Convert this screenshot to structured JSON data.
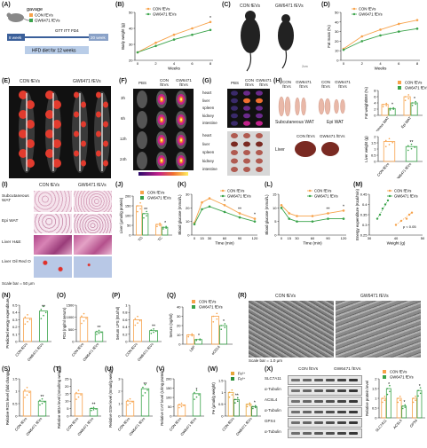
{
  "colors": {
    "con": "#f7a24a",
    "gw": "#3aa34a",
    "fat": "#e23b2e",
    "mouse": "#222222"
  },
  "letters": [
    "(A)",
    "(B)",
    "(C)",
    "(D)",
    "(E)",
    "(F)",
    "(G)",
    "(H)",
    "(I)",
    "(J)",
    "(K)",
    "(L)",
    "(M)",
    "(N)",
    "(O)",
    "(P)",
    "(Q)",
    "(R)",
    "(S)",
    "(T)",
    "(U)",
    "(V)",
    "(W)",
    "(X)"
  ],
  "groups": {
    "con": "CON fEVs",
    "gw": "GW6471 fEVs"
  },
  "A": {
    "gavage": "gavage",
    "legend": [
      "CON fEVs",
      "GW6471 fEVs"
    ],
    "start": "8 week",
    "end": "20 week",
    "diet": "HFD diet for 12 weeks",
    "tests": "GTT ITT FD4"
  },
  "B": {
    "ylabel": "Body weight (g)",
    "xlabel": "Weeks",
    "legend": [
      "CON fEVs",
      "GW6471 fEVs"
    ],
    "star": "*"
  },
  "C": {
    "labels": [
      "CON fEVs",
      "GW6471 fEVs"
    ],
    "scale": "2cm"
  },
  "D": {
    "ylabel": "Fat mass (%)",
    "xlabel": "Weeks",
    "legend": [
      "CON fEVs",
      "GW6471 fEVs"
    ]
  },
  "E": {
    "labels": [
      "CON fEVs",
      "GW6471 fEVs"
    ]
  },
  "F": {
    "cols": [
      "PBS",
      "CON fEVs",
      "GW6471 fEVs"
    ],
    "rows": [
      "3h",
      "6h",
      "12h",
      "24h"
    ]
  },
  "G": {
    "cols": [
      "PBS",
      "CON fEVs",
      "GW6471 fEVs"
    ],
    "organs1": [
      "heart",
      "liver",
      "spleen",
      "kidney",
      "intestine"
    ],
    "organs2": [
      "heart",
      "liver",
      "spleen",
      "kidney",
      "intestine"
    ]
  },
  "H": {
    "cols": [
      "CON fEVs",
      "GW6471 fEVs",
      "CON fEVs",
      "GW6471 fEVs"
    ],
    "tissues": [
      "Subcutaneous WAT",
      "Epi WAT"
    ],
    "liver": "Liver",
    "legend": [
      "CON fEVs",
      "GW6471 fEVs"
    ],
    "ylabel1": "Fat weight/BW (%)",
    "xcats1": [
      "Subcutaneous WAT",
      "Epi WAT"
    ],
    "ylabel2": "Liver weight (g)"
  },
  "I": {
    "cols": [
      "CON fEVs",
      "GW6471 fEVs"
    ],
    "rows": [
      "Subcutaneous WAT",
      "Epi WAT",
      "Liver H&E",
      "Liver Oil Red O"
    ],
    "scale": "Scale bar = 50 μm"
  },
  "J": {
    "ylabel": "Liver (μmol/g protein)",
    "xcats": [
      "TG",
      "TC"
    ],
    "legend": [
      "CON fEVs",
      "GW6471 fEVs"
    ],
    "stars": [
      "**",
      "*"
    ]
  },
  "K": {
    "ylabel": "Blood glucose (mmol/L)",
    "xlabel": "Time (min)",
    "legend": [
      "CON fEVs",
      "GW6471 fEVs"
    ],
    "xticks": [
      "0",
      "15",
      "30",
      "60",
      "90",
      "120"
    ],
    "stars": [
      "*",
      "**",
      "*"
    ]
  },
  "L": {
    "ylabel": "Blood glucose (mmol/L)",
    "xlabel": "Time (min)",
    "legend": [
      "CON fEVs",
      "GW6471 fEVs"
    ],
    "xticks": [
      "0",
      "15",
      "30",
      "60",
      "90",
      "120"
    ],
    "stars": [
      "**",
      "*"
    ]
  },
  "M": {
    "ylabel": "Energy expenditure (Kcal/min)",
    "xlabel": "Weight (g)",
    "legend": [
      "CON fEVs",
      "GW6471 fEVs"
    ],
    "pval": "p < 0.05"
  },
  "N": {
    "ylabel": "Predicted energy expenditure",
    "xcats": [
      "CON fEVs",
      "GW6471 fEVs"
    ],
    "star": "**"
  },
  "O": {
    "ylabel": "FD4 (ng/ml serum)",
    "xcats": [
      "CON fEVs",
      "GW6471 fEVs"
    ],
    "star": "**"
  },
  "P": {
    "ylabel": "Serum LPS (EU/ml)",
    "xcats": [
      "CON fEVs",
      "GW6471 fEVs"
    ],
    "star": "**"
  },
  "Q": {
    "ylabel": "Serum (ng/ml)",
    "xcats": [
      "LBP",
      "sCD14"
    ],
    "legend": [
      "CON fEVs",
      "GW6471 fEVs"
    ],
    "stars": [
      "*",
      "*"
    ]
  },
  "R": {
    "cols": [
      "CON fEVs",
      "GW6471 fEVs"
    ],
    "scale": "Scale bar = 1.0 μm"
  },
  "S": {
    "ylabel": "Relative ROS level (fold change)",
    "xcats": [
      "CON fEVs",
      "GW6471 fEVs"
    ],
    "star": "**"
  },
  "T": {
    "ylabel": "Relative MDA level (nmol/mg weight)",
    "xcats": [
      "CON fEVs",
      "GW6471 fEVs"
    ],
    "star": "**"
  },
  "U": {
    "ylabel": "Relative GSH level (mmol/g weight)",
    "xcats": [
      "CON fEVs",
      "GW6471 fEVs"
    ],
    "star": "**"
  },
  "V": {
    "ylabel": "Relative CAT level (U/mg protein)",
    "xcats": [
      "CON fEVs",
      "GW6471 fEVs"
    ],
    "star": "*"
  },
  "W": {
    "ylabel": "Fe (μmol/g weight)",
    "xcats": [
      "CON fEVs",
      "GW6471 fEVs"
    ],
    "legend": [
      "Fe²⁺",
      "Fe³⁺"
    ],
    "stars": [
      "**",
      "*"
    ]
  },
  "X": {
    "cols": [
      "CON fEVs",
      "GW6471 fEVs"
    ],
    "bands": [
      "SLC7A11",
      "α-Tubulin",
      "ACSL4",
      "α-Tubulin",
      "GPX4",
      "α-Tubulin"
    ],
    "legend": [
      "CON fEVs",
      "GW6471 fEVs"
    ],
    "ylabel": "Relative protein level",
    "xcats": [
      "SLC7A11",
      "ACSL4",
      "GPX4"
    ],
    "stars": [
      "*",
      "*",
      "*"
    ]
  },
  "chart_data": [
    {
      "panel": "B",
      "type": "line",
      "x": [
        0,
        2,
        4,
        6,
        8
      ],
      "xlabel": "Weeks",
      "ylabel": "Body weight (g)",
      "ylim": [
        20,
        50
      ],
      "series": [
        {
          "name": "CON fEVs",
          "values": [
            25,
            31,
            36,
            40,
            44
          ]
        },
        {
          "name": "GW6471 fEVs",
          "values": [
            25,
            29,
            33,
            36,
            39
          ]
        }
      ]
    },
    {
      "panel": "D",
      "type": "line",
      "x": [
        0,
        2,
        4,
        6,
        8
      ],
      "xlabel": "Weeks",
      "ylabel": "Fat mass (%)",
      "ylim": [
        0,
        50
      ],
      "series": [
        {
          "name": "CON fEVs",
          "values": [
            12,
            25,
            32,
            38,
            42
          ]
        },
        {
          "name": "GW6471 fEVs",
          "values": [
            11,
            20,
            26,
            30,
            33
          ]
        }
      ]
    },
    {
      "panel": "H1",
      "type": "bar",
      "categories": [
        "Subcutaneous WAT",
        "Epi WAT"
      ],
      "ylabel": "Fat weight/BW (%)",
      "ylim": [
        0,
        8
      ],
      "series": [
        {
          "name": "CON fEVs",
          "values": [
            3.5,
            6.0
          ]
        },
        {
          "name": "GW6471 fEVs",
          "values": [
            2.2,
            4.0
          ]
        }
      ]
    },
    {
      "panel": "H2",
      "type": "bar",
      "categories": [
        "CON fEVs",
        "GW6471 fEVs"
      ],
      "ylabel": "Liver weight (g)",
      "ylim": [
        0,
        2.0
      ],
      "values": [
        1.6,
        1.2
      ]
    },
    {
      "panel": "J",
      "type": "bar",
      "categories": [
        "TG",
        "TC"
      ],
      "ylabel": "Liver (μmol/g protein)",
      "ylim": [
        0,
        200
      ],
      "series": [
        {
          "name": "CON fEVs",
          "values": [
            150,
            55
          ]
        },
        {
          "name": "GW6471 fEVs",
          "values": [
            110,
            40
          ]
        }
      ]
    },
    {
      "panel": "K",
      "type": "line",
      "x": [
        0,
        15,
        30,
        60,
        90,
        120
      ],
      "xlabel": "Time (min)",
      "ylabel": "Blood glucose (mmol/L)",
      "ylim": [
        0,
        30
      ],
      "series": [
        {
          "name": "CON fEVs",
          "values": [
            9,
            24,
            27,
            22,
            16,
            12
          ]
        },
        {
          "name": "GW6471 fEVs",
          "values": [
            8,
            19,
            21,
            17,
            13,
            10
          ]
        }
      ]
    },
    {
      "panel": "L",
      "type": "line",
      "x": [
        0,
        15,
        30,
        60,
        90,
        120
      ],
      "xlabel": "Time (min)",
      "ylabel": "Blood glucose (mmol/L)",
      "ylim": [
        0,
        15
      ],
      "series": [
        {
          "name": "CON fEVs",
          "values": [
            11,
            8,
            7,
            7,
            8,
            9
          ]
        },
        {
          "name": "GW6471 fEVs",
          "values": [
            10,
            6,
            5,
            5,
            6,
            6
          ]
        }
      ]
    },
    {
      "panel": "M",
      "type": "scatter",
      "xlabel": "Weight (g)",
      "ylabel": "Energy expenditure (Kcal/min)",
      "xlim": [
        30,
        50
      ],
      "ylim": [
        0.25,
        0.45
      ],
      "series": [
        {
          "name": "GW6471 fEVs",
          "points": [
            [
              33,
              0.33
            ],
            [
              34,
              0.35
            ],
            [
              35,
              0.38
            ],
            [
              36,
              0.4
            ],
            [
              37,
              0.42
            ]
          ]
        },
        {
          "name": "CON fEVs",
          "points": [
            [
              40,
              0.3
            ],
            [
              42,
              0.32
            ],
            [
              44,
              0.33
            ],
            [
              45,
              0.35
            ],
            [
              46,
              0.36
            ]
          ]
        }
      ]
    },
    {
      "panel": "N",
      "type": "bar",
      "categories": [
        "CON fEVs",
        "GW6471 fEVs"
      ],
      "ylim": [
        0,
        0.5
      ],
      "values": [
        0.32,
        0.42
      ]
    },
    {
      "panel": "O",
      "type": "bar",
      "categories": [
        "CON fEVs",
        "GW6471 fEVs"
      ],
      "ylim": [
        0,
        1500
      ],
      "values": [
        1000,
        400
      ]
    },
    {
      "panel": "P",
      "type": "bar",
      "categories": [
        "CON fEVs",
        "GW6471 fEVs"
      ],
      "ylim": [
        0,
        1.0
      ],
      "values": [
        0.6,
        0.3
      ]
    },
    {
      "panel": "Q",
      "type": "bar",
      "categories": [
        "LBP",
        "sCD14"
      ],
      "ylim": [
        0,
        40
      ],
      "series": [
        {
          "name": "CON fEVs",
          "values": [
            10,
            30
          ]
        },
        {
          "name": "GW6471 fEVs",
          "values": [
            5,
            20
          ]
        }
      ]
    },
    {
      "panel": "S",
      "type": "bar",
      "categories": [
        "CON fEVs",
        "GW6471 fEVs"
      ],
      "ylim": [
        0,
        1.5
      ],
      "values": [
        1.0,
        0.6
      ]
    },
    {
      "panel": "T",
      "type": "bar",
      "categories": [
        "CON fEVs",
        "GW6471 fEVs"
      ],
      "ylim": [
        0,
        25
      ],
      "values": [
        15,
        5
      ]
    },
    {
      "panel": "U",
      "type": "bar",
      "categories": [
        "CON fEVs",
        "GW6471 fEVs"
      ],
      "ylim": [
        0,
        3
      ],
      "values": [
        1.2,
        2.2
      ]
    },
    {
      "panel": "V",
      "type": "bar",
      "categories": [
        "CON fEVs",
        "GW6471 fEVs"
      ],
      "ylim": [
        0,
        200
      ],
      "values": [
        60,
        120
      ]
    },
    {
      "panel": "W",
      "type": "bar",
      "categories": [
        "CON fEVs",
        "GW6471 fEVs"
      ],
      "ylim": [
        0,
        1.5
      ],
      "series": [
        {
          "name": "Fe²⁺",
          "values": [
            1.0,
            0.5
          ]
        },
        {
          "name": "Fe³⁺",
          "values": [
            0.7,
            0.4
          ]
        }
      ]
    },
    {
      "panel": "X",
      "type": "bar",
      "categories": [
        "SLC7A11",
        "ACSL4",
        "GPX4"
      ],
      "ylim": [
        0,
        2.0
      ],
      "series": [
        {
          "name": "CON fEVs",
          "values": [
            1.0,
            1.0,
            1.0
          ]
        },
        {
          "name": "GW6471 fEVs",
          "values": [
            1.5,
            0.6,
            1.4
          ]
        }
      ]
    }
  ]
}
